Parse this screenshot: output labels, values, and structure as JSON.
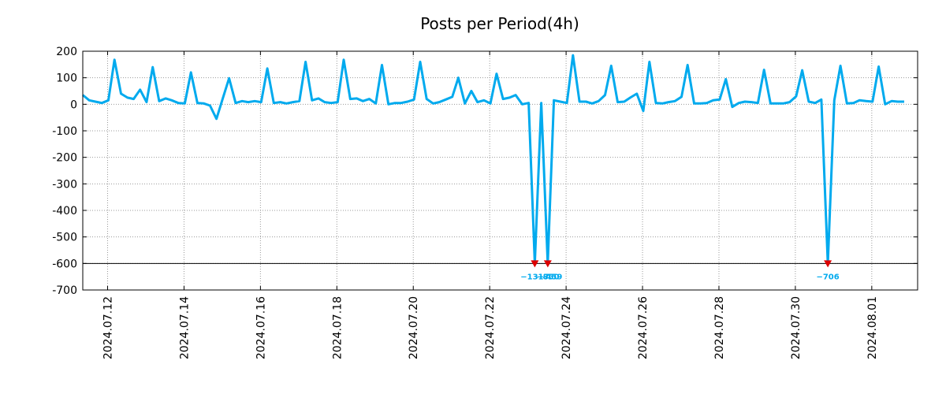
{
  "chart_data": {
    "type": "line",
    "title": "Posts per Period(4h)",
    "xlabel": "",
    "ylabel": "",
    "grid": true,
    "ylim": [
      -700,
      200
    ],
    "y_ticks": [
      200,
      100,
      0,
      -100,
      -200,
      -300,
      -400,
      -500,
      -600,
      -700
    ],
    "x_range_days": [
      0,
      21.85
    ],
    "x_ticks": [
      {
        "day": 0.65,
        "label": "2024.07.12"
      },
      {
        "day": 2.65,
        "label": "2024.07.14"
      },
      {
        "day": 4.65,
        "label": "2024.07.16"
      },
      {
        "day": 6.65,
        "label": "2024.07.18"
      },
      {
        "day": 8.65,
        "label": "2024.07.20"
      },
      {
        "day": 10.65,
        "label": "2024.07.22"
      },
      {
        "day": 12.65,
        "label": "2024.07.24"
      },
      {
        "day": 14.65,
        "label": "2024.07.26"
      },
      {
        "day": 16.65,
        "label": "2024.07.28"
      },
      {
        "day": 18.65,
        "label": "2024.07.30"
      },
      {
        "day": 20.65,
        "label": "2024.08.01"
      }
    ],
    "reference_line": -600,
    "clip_floor": -600,
    "series": [
      {
        "name": "Posts per Period(4h)",
        "color": "#00aaee",
        "points": [
          [
            0.0,
            35
          ],
          [
            0.17,
            15
          ],
          [
            0.33,
            10
          ],
          [
            0.5,
            5
          ],
          [
            0.67,
            15
          ],
          [
            0.83,
            168
          ],
          [
            1.0,
            40
          ],
          [
            1.17,
            25
          ],
          [
            1.33,
            20
          ],
          [
            1.5,
            55
          ],
          [
            1.67,
            8
          ],
          [
            1.83,
            140
          ],
          [
            2.0,
            12
          ],
          [
            2.17,
            22
          ],
          [
            2.33,
            15
          ],
          [
            2.5,
            5
          ],
          [
            2.67,
            3
          ],
          [
            2.83,
            120
          ],
          [
            3.0,
            5
          ],
          [
            3.17,
            3
          ],
          [
            3.33,
            -5
          ],
          [
            3.5,
            -55
          ],
          [
            3.67,
            25
          ],
          [
            3.83,
            98
          ],
          [
            4.0,
            5
          ],
          [
            4.17,
            12
          ],
          [
            4.33,
            8
          ],
          [
            4.5,
            12
          ],
          [
            4.67,
            8
          ],
          [
            4.83,
            135
          ],
          [
            5.0,
            5
          ],
          [
            5.17,
            8
          ],
          [
            5.33,
            3
          ],
          [
            5.5,
            8
          ],
          [
            5.67,
            12
          ],
          [
            5.83,
            160
          ],
          [
            6.0,
            15
          ],
          [
            6.17,
            22
          ],
          [
            6.33,
            8
          ],
          [
            6.5,
            5
          ],
          [
            6.67,
            8
          ],
          [
            6.83,
            168
          ],
          [
            7.0,
            20
          ],
          [
            7.17,
            22
          ],
          [
            7.33,
            12
          ],
          [
            7.5,
            20
          ],
          [
            7.67,
            3
          ],
          [
            7.83,
            148
          ],
          [
            8.0,
            0
          ],
          [
            8.17,
            5
          ],
          [
            8.33,
            5
          ],
          [
            8.5,
            10
          ],
          [
            8.67,
            18
          ],
          [
            8.83,
            160
          ],
          [
            9.0,
            20
          ],
          [
            9.17,
            3
          ],
          [
            9.33,
            8
          ],
          [
            9.5,
            18
          ],
          [
            9.67,
            28
          ],
          [
            9.83,
            100
          ],
          [
            10.0,
            3
          ],
          [
            10.17,
            50
          ],
          [
            10.33,
            8
          ],
          [
            10.5,
            15
          ],
          [
            10.67,
            3
          ],
          [
            10.83,
            115
          ],
          [
            11.0,
            20
          ],
          [
            11.17,
            25
          ],
          [
            11.33,
            35
          ],
          [
            11.5,
            0
          ],
          [
            11.67,
            5
          ],
          [
            11.83,
            -1317
          ],
          [
            12.0,
            5
          ],
          [
            12.17,
            -850
          ],
          [
            12.33,
            15
          ],
          [
            12.5,
            10
          ],
          [
            12.67,
            5
          ],
          [
            12.83,
            185
          ],
          [
            13.0,
            10
          ],
          [
            13.17,
            10
          ],
          [
            13.33,
            3
          ],
          [
            13.5,
            12
          ],
          [
            13.67,
            35
          ],
          [
            13.83,
            145
          ],
          [
            14.0,
            8
          ],
          [
            14.17,
            10
          ],
          [
            14.33,
            25
          ],
          [
            14.5,
            40
          ],
          [
            14.67,
            -25
          ],
          [
            14.83,
            160
          ],
          [
            15.0,
            5
          ],
          [
            15.17,
            3
          ],
          [
            15.33,
            8
          ],
          [
            15.5,
            12
          ],
          [
            15.67,
            28
          ],
          [
            15.83,
            148
          ],
          [
            16.0,
            3
          ],
          [
            16.17,
            3
          ],
          [
            16.33,
            5
          ],
          [
            16.5,
            15
          ],
          [
            16.67,
            18
          ],
          [
            16.83,
            95
          ],
          [
            17.0,
            -10
          ],
          [
            17.17,
            5
          ],
          [
            17.33,
            10
          ],
          [
            17.5,
            8
          ],
          [
            17.67,
            5
          ],
          [
            17.83,
            130
          ],
          [
            18.0,
            3
          ],
          [
            18.17,
            3
          ],
          [
            18.33,
            3
          ],
          [
            18.5,
            8
          ],
          [
            18.67,
            30
          ],
          [
            18.83,
            128
          ],
          [
            19.0,
            10
          ],
          [
            19.17,
            5
          ],
          [
            19.33,
            18
          ],
          [
            19.5,
            -706
          ],
          [
            19.67,
            15
          ],
          [
            19.83,
            145
          ],
          [
            20.0,
            3
          ],
          [
            20.17,
            5
          ],
          [
            20.33,
            15
          ],
          [
            20.5,
            12
          ],
          [
            20.67,
            10
          ],
          [
            20.83,
            142
          ],
          [
            21.0,
            0
          ],
          [
            21.17,
            12
          ],
          [
            21.33,
            10
          ],
          [
            21.5,
            10
          ]
        ]
      }
    ],
    "annotations": [
      {
        "day": 11.83,
        "label": "−1317"
      },
      {
        "day": 12.17,
        "label": "−850"
      },
      {
        "day": 12.25,
        "label": "−459"
      },
      {
        "day": 19.5,
        "label": "−706"
      }
    ]
  },
  "colors": {
    "line": "#00aaee",
    "marker": "#dd0000",
    "grid": "#999999",
    "reference": "#000000"
  }
}
